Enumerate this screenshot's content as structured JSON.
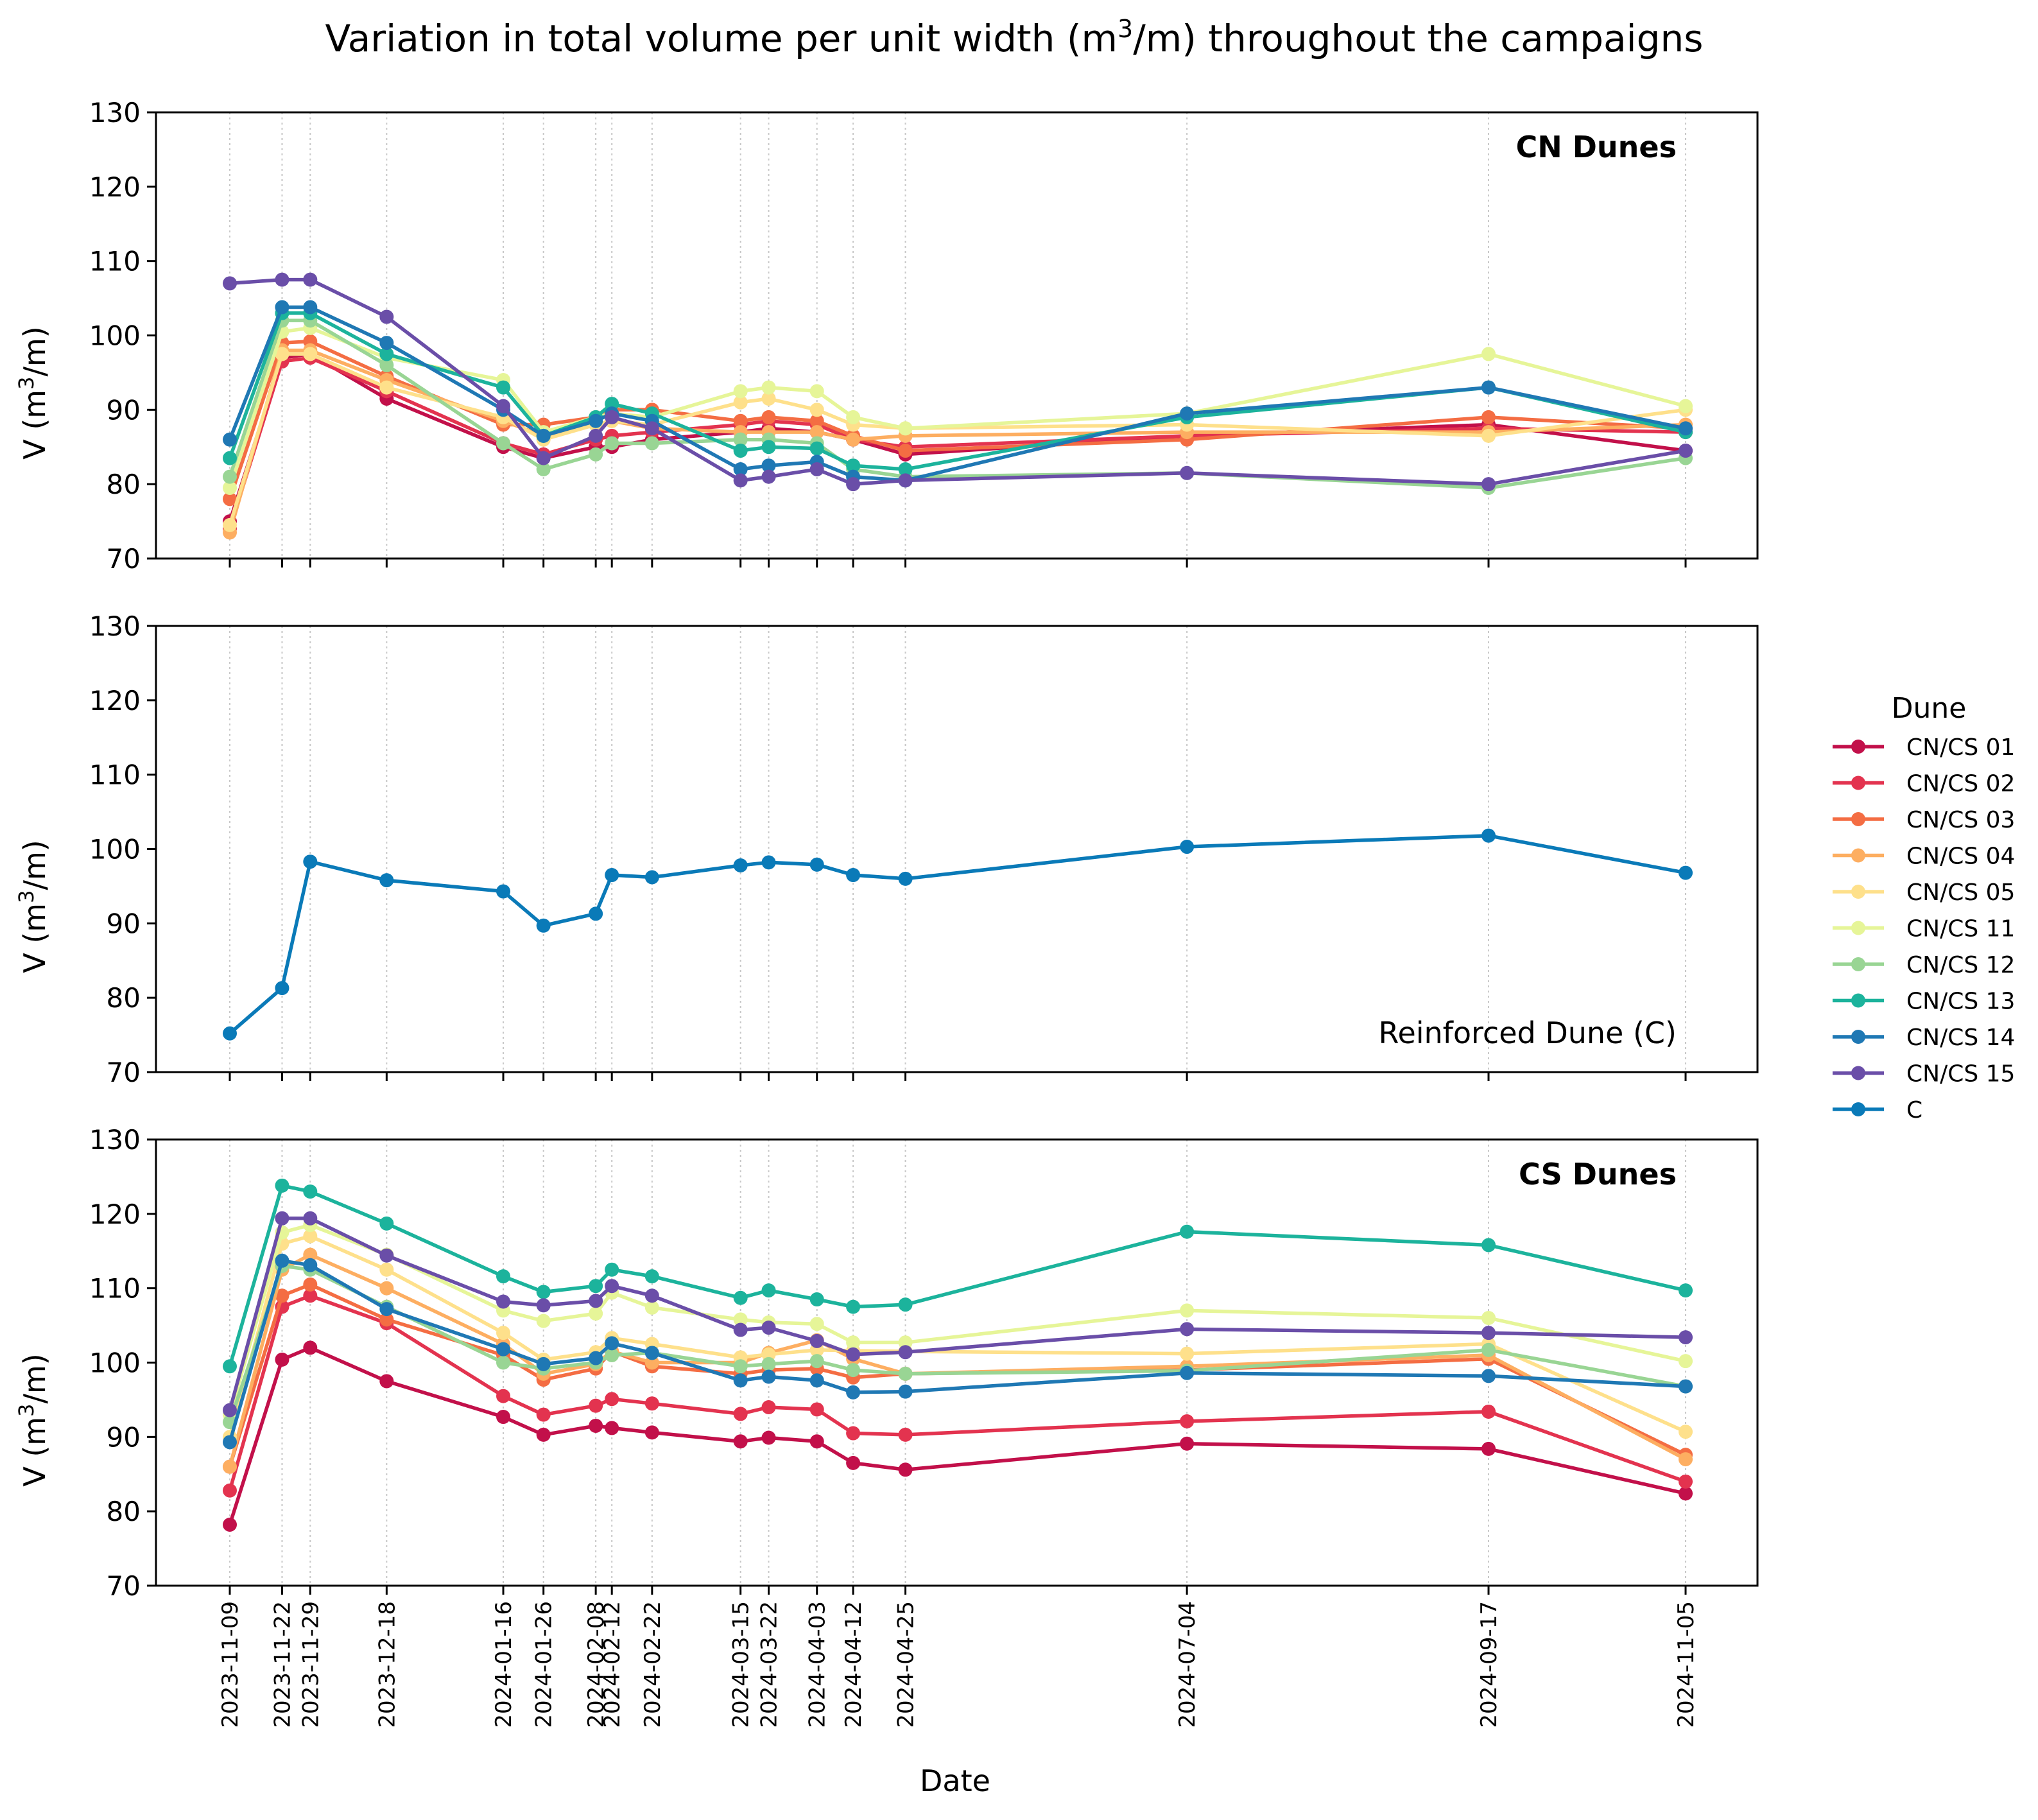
{
  "chart_data": {
    "type": "line",
    "title_prefix": "Variation in total volume per unit width (m",
    "title_sup": "3",
    "title_suffix": "/m) throughout the campaigns",
    "xlabel": "Date",
    "ylabel_prefix": "V (m",
    "ylabel_sup": "3",
    "ylabel_suffix": "/m)",
    "ylim": [
      70,
      130
    ],
    "yticks": [
      "70",
      "80",
      "90",
      "100",
      "110",
      "120",
      "130"
    ],
    "grid": "vertical dotted lines at campaign dates",
    "dates": [
      "2023-11-09",
      "2023-11-22",
      "2023-11-29",
      "2023-12-18",
      "2024-01-16",
      "2024-01-26",
      "2024-02-08",
      "2024-02-12",
      "2024-02-22",
      "2024-03-15",
      "2024-03-22",
      "2024-04-03",
      "2024-04-12",
      "2024-04-25",
      "2024-07-04",
      "2024-09-17",
      "2024-11-05"
    ],
    "day_offsets": [
      0,
      13,
      20,
      39,
      68,
      78,
      91,
      95,
      105,
      127,
      134,
      146,
      155,
      168,
      238,
      313,
      362
    ],
    "legend": {
      "title": "Dune",
      "entries": [
        {
          "label": "CN/CS 01",
          "color": "#c2104a"
        },
        {
          "label": "CN/CS 02",
          "color": "#e3334f"
        },
        {
          "label": "CN/CS 03",
          "color": "#f46d43"
        },
        {
          "label": "CN/CS 04",
          "color": "#fdae61"
        },
        {
          "label": "CN/CS 05",
          "color": "#fee08b"
        },
        {
          "label": "CN/CS 11",
          "color": "#e6f598"
        },
        {
          "label": "CN/CS 12",
          "color": "#99d594"
        },
        {
          "label": "CN/CS 13",
          "color": "#1cb39c"
        },
        {
          "label": "CN/CS 14",
          "color": "#1f78b4"
        },
        {
          "label": "CN/CS 15",
          "color": "#6a4ea8"
        },
        {
          "label": "C",
          "color": "#0a7ab8"
        }
      ]
    },
    "panels": [
      {
        "label": "CN Dunes",
        "label_style": "bold",
        "series": [
          {
            "name": "CN/CS 01",
            "color": "#c2104a",
            "values": [
              75,
              97,
              97.5,
              91.5,
              85,
              83.5,
              85,
              85,
              86,
              87,
              87.5,
              87,
              86,
              84,
              86.5,
              88,
              84.5
            ]
          },
          {
            "name": "CN/CS 02",
            "color": "#e3334f",
            "values": [
              74,
              96.5,
              97,
              92.5,
              85.5,
              84,
              86,
              86.5,
              87,
              88,
              88.5,
              88,
              86,
              85,
              86.5,
              87.5,
              87
            ]
          },
          {
            "name": "CN/CS 03",
            "color": "#f46d43",
            "values": [
              78,
              99,
              99.2,
              94.5,
              88,
              88,
              89,
              90,
              90,
              88.5,
              89,
              88.5,
              86.5,
              84.5,
              86,
              89,
              87.5
            ]
          },
          {
            "name": "CN/CS 04",
            "color": "#fdae61",
            "values": [
              73.5,
              98,
              98,
              94,
              88.5,
              86.5,
              88,
              88.5,
              87.5,
              87,
              87,
              87,
              86,
              86.5,
              87,
              87,
              88
            ]
          },
          {
            "name": "CN/CS 05",
            "color": "#fee08b",
            "values": [
              74.5,
              97.5,
              97.5,
              93,
              89,
              86,
              88,
              88.5,
              88,
              91,
              91.5,
              90,
              88,
              87.5,
              88,
              86.5,
              90
            ]
          },
          {
            "name": "CN/CS 11",
            "color": "#e6f598",
            "values": [
              79.5,
              100.5,
              101,
              97,
              94,
              87,
              89,
              89.5,
              89,
              92.5,
              93,
              92.5,
              89,
              87.5,
              89.5,
              97.5,
              90.5
            ]
          },
          {
            "name": "CN/CS 12",
            "color": "#99d594",
            "values": [
              81,
              102,
              102,
              96,
              85.5,
              82,
              84,
              85.5,
              85.5,
              86,
              86,
              85.5,
              82,
              81,
              81.5,
              79.5,
              83.5
            ]
          },
          {
            "name": "CN/CS 13",
            "color": "#1cb39c",
            "values": [
              83.5,
              103,
              103,
              97.5,
              93,
              86.5,
              89,
              90.8,
              89.5,
              84.5,
              85,
              84.8,
              82.5,
              82,
              89,
              93,
              87
            ]
          },
          {
            "name": "CN/CS 14",
            "color": "#1f78b4",
            "values": [
              86,
              103.8,
              103.8,
              99,
              90,
              86.5,
              88.5,
              89.5,
              88.5,
              82,
              82.5,
              83,
              81,
              80.5,
              89.5,
              93,
              87.5
            ]
          },
          {
            "name": "CN/CS 15",
            "color": "#6a4ea8",
            "values": [
              107,
              107.5,
              107.5,
              102.5,
              90.5,
              83.5,
              86.5,
              89,
              87.5,
              80.5,
              81,
              82,
              80,
              80.5,
              81.5,
              80,
              84.5
            ]
          }
        ]
      },
      {
        "label": "Reinforced Dune (C)",
        "label_style": "normal",
        "series": [
          {
            "name": "C",
            "color": "#0a7ab8",
            "values": [
              75.2,
              81.3,
              98.3,
              95.8,
              94.3,
              89.7,
              91.3,
              96.5,
              96.2,
              97.8,
              98.2,
              97.9,
              96.5,
              96,
              100.3,
              101.8,
              96.8
            ]
          }
        ]
      },
      {
        "label": "CS Dunes",
        "label_style": "bold",
        "series": [
          {
            "name": "CN/CS 01",
            "color": "#c2104a",
            "values": [
              78.2,
              100.4,
              102,
              97.5,
              92.7,
              90.3,
              91.5,
              91.2,
              90.6,
              89.4,
              89.9,
              89.4,
              86.5,
              85.6,
              89.1,
              88.4,
              82.4
            ]
          },
          {
            "name": "CN/CS 02",
            "color": "#e3334f",
            "values": [
              82.8,
              107.5,
              109,
              105.3,
              95.5,
              93,
              94.2,
              95.1,
              94.5,
              93.1,
              94,
              93.7,
              90.5,
              90.3,
              92.1,
              93.4,
              84
            ]
          },
          {
            "name": "CN/CS 03",
            "color": "#f46d43",
            "values": [
              86,
              109,
              110.5,
              105.8,
              101,
              97.7,
              99.2,
              101.5,
              99.5,
              98.5,
              99,
              99.2,
              98,
              98.5,
              99,
              100.5,
              87.6
            ]
          },
          {
            "name": "CN/CS 04",
            "color": "#fdae61",
            "values": [
              86,
              112.5,
              114.5,
              110,
              102.5,
              98.5,
              99.8,
              101.5,
              100,
              100,
              101.3,
              103,
              100.5,
              98.5,
              99.5,
              101,
              87
            ]
          },
          {
            "name": "CN/CS 05",
            "color": "#fee08b",
            "values": [
              90,
              116,
              117,
              112.5,
              104,
              100.4,
              101.4,
              103.3,
              102.5,
              100.7,
              101.1,
              101.7,
              101.6,
              101.5,
              101.2,
              102.5,
              90.7
            ]
          },
          {
            "name": "CN/CS 11",
            "color": "#e6f598",
            "values": [
              93,
              117.5,
              118.5,
              114.5,
              107,
              105.6,
              106.6,
              109.4,
              107.4,
              105.8,
              105.4,
              105.2,
              102.7,
              102.7,
              107,
              106,
              100.2
            ]
          },
          {
            "name": "CN/CS 12",
            "color": "#99d594",
            "values": [
              92,
              113,
              112.5,
              107.5,
              100,
              99.2,
              100,
              101,
              101.3,
              99.5,
              99.8,
              100.2,
              99,
              98.5,
              98.9,
              101.7,
              96.8
            ]
          },
          {
            "name": "CN/CS 13",
            "color": "#1cb39c",
            "values": [
              99.5,
              123.8,
              123,
              118.7,
              111.6,
              109.5,
              110.3,
              112.5,
              111.6,
              108.7,
              109.7,
              108.5,
              107.5,
              107.8,
              117.6,
              115.8,
              109.7
            ]
          },
          {
            "name": "CN/CS 14",
            "color": "#1f78b4",
            "values": [
              89.3,
              113.7,
              113.1,
              107.2,
              101.8,
              99.8,
              100.6,
              102.6,
              101.3,
              97.6,
              98.1,
              97.6,
              96,
              96.1,
              98.6,
              98.2,
              96.8
            ]
          },
          {
            "name": "CN/CS 15",
            "color": "#6a4ea8",
            "values": [
              93.6,
              119.4,
              119.4,
              114.4,
              108.2,
              107.7,
              108.3,
              110.3,
              109,
              104.4,
              104.7,
              102.9,
              101.1,
              101.4,
              104.5,
              104,
              103.4
            ]
          }
        ]
      }
    ]
  }
}
